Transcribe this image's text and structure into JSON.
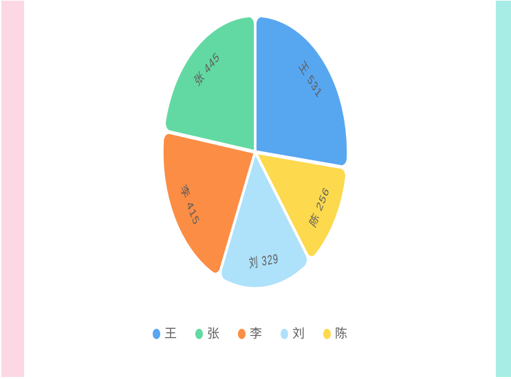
{
  "page": {
    "background": "#ffffff",
    "left_stripe_color": "#fbd8e4",
    "right_stripe_color": "#a8ece6"
  },
  "chart_data": {
    "type": "pie",
    "title": "",
    "categories": [
      "王",
      "张",
      "李",
      "刘",
      "陈"
    ],
    "values": [
      531,
      445,
      415,
      329,
      256
    ],
    "colors": [
      "#57a6f0",
      "#62d9a2",
      "#fc8d44",
      "#aee1fa",
      "#fcd94d"
    ],
    "slice_labels": [
      "王 531",
      "张 445",
      "李 415",
      "刘 329",
      "陈 256"
    ],
    "label_color": "#5c5c5c",
    "legend_entries": [
      "王",
      "张",
      "李",
      "刘",
      "陈"
    ],
    "layout": {
      "start_at": "top",
      "direction": "counterclockwise",
      "legend_position": "bottom",
      "grid": "off"
    }
  }
}
